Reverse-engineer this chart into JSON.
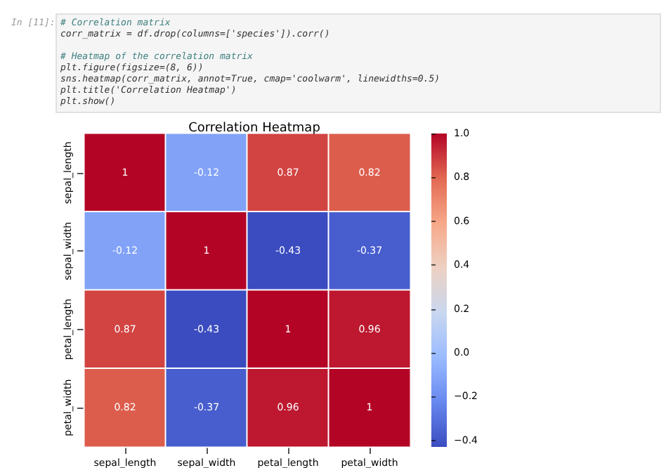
{
  "chart_data": {
    "type": "heatmap",
    "title": "Correlation Heatmap",
    "categories": [
      "sepal_length",
      "sepal_width",
      "petal_length",
      "petal_width"
    ],
    "y_categories": [
      "sepal_length",
      "sepal_width",
      "petal_length",
      "petal_width"
    ],
    "cells": [
      [
        1,
        -0.12,
        0.87,
        0.82
      ],
      [
        -0.12,
        1,
        -0.43,
        -0.37
      ],
      [
        0.87,
        -0.43,
        1,
        0.96
      ],
      [
        0.82,
        -0.37,
        0.96,
        1
      ]
    ],
    "data_labels": true,
    "clim": [
      -0.43,
      1
    ],
    "cticks": [
      {
        "value": -0.4,
        "label": "−0.4"
      },
      {
        "value": -0.2,
        "label": "−0.2"
      },
      {
        "value": 0,
        "label": "0.0"
      },
      {
        "value": 0.2,
        "label": "0.2"
      },
      {
        "value": 0.4,
        "label": "0.4"
      },
      {
        "value": 0.6,
        "label": "0.6"
      },
      {
        "value": 0.8,
        "label": "0.8"
      },
      {
        "value": 1,
        "label": "1.0"
      }
    ],
    "annotations": [
      "In [11]:",
      "# Correlation matrix",
      "corr_matrix = df.drop(columns=['species']).corr()",
      "# Heatmap of the correlation matrix",
      "plt.figure(figsize=(8, 6))",
      "sns.heatmap(corr_matrix, annot=True, cmap='coolwarm', linewidths=0.5)",
      "plt.title('Correlation Heatmap')",
      "plt.show()"
    ]
  }
}
